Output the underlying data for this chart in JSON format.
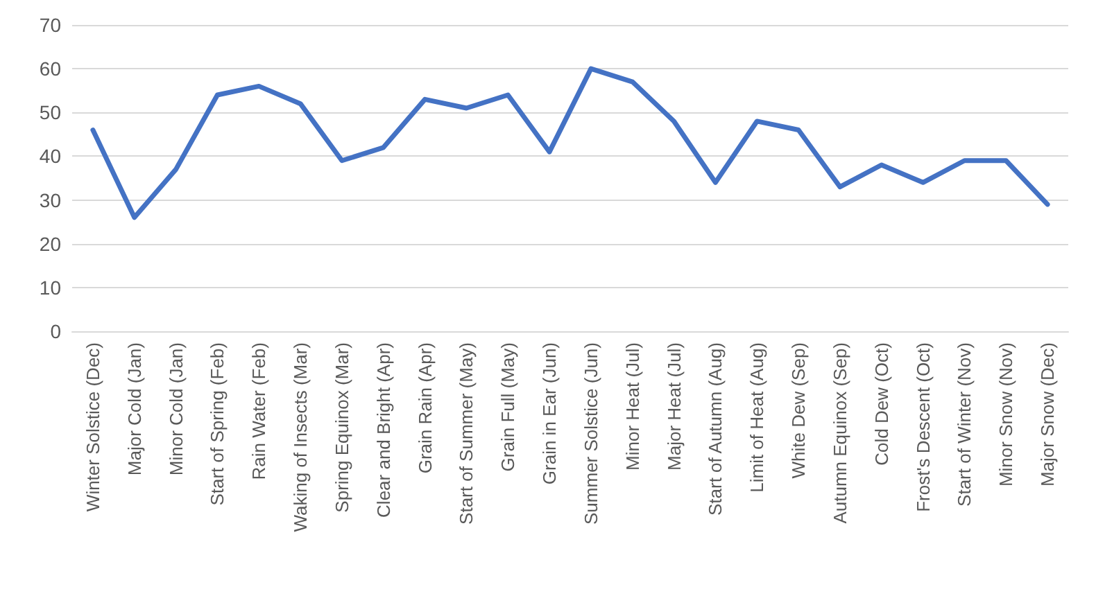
{
  "chart_data": {
    "type": "line",
    "categories": [
      "Winter Solstice (Dec)",
      "Major Cold (Jan)",
      "Minor Cold (Jan)",
      "Start of Spring (Feb)",
      "Rain Water (Feb)",
      "Waking of Insects (Mar)",
      "Spring Equinox (Mar)",
      "Clear and Bright (Apr)",
      "Grain Rain (Apr)",
      "Start of Summer (May)",
      "Grain Full (May)",
      "Grain in Ear (Jun)",
      "Summer Solstice (Jun)",
      "Minor Heat (Jul)",
      "Major Heat (Jul)",
      "Start of Autumn (Aug)",
      "Limit of Heat (Aug)",
      "White Dew (Sep)",
      "Autumn Equinox (Sep)",
      "Cold Dew (Oct)",
      "Frost's Descent (Oct)",
      "Start of Winter (Nov)",
      "Minor Snow (Nov)",
      "Major Snow (Dec)"
    ],
    "series": [
      {
        "color": "#4472c4",
        "values": [
          46,
          26,
          37,
          54,
          56,
          52,
          39,
          42,
          53,
          51,
          54,
          41,
          60,
          57,
          48,
          34,
          48,
          46,
          33,
          38,
          34,
          39,
          39,
          29
        ]
      }
    ],
    "ylim": [
      0,
      70
    ],
    "yticks": [
      0,
      10,
      20,
      30,
      40,
      50,
      60,
      70
    ],
    "grid": "y",
    "marker": "none",
    "line_style": "solid"
  }
}
